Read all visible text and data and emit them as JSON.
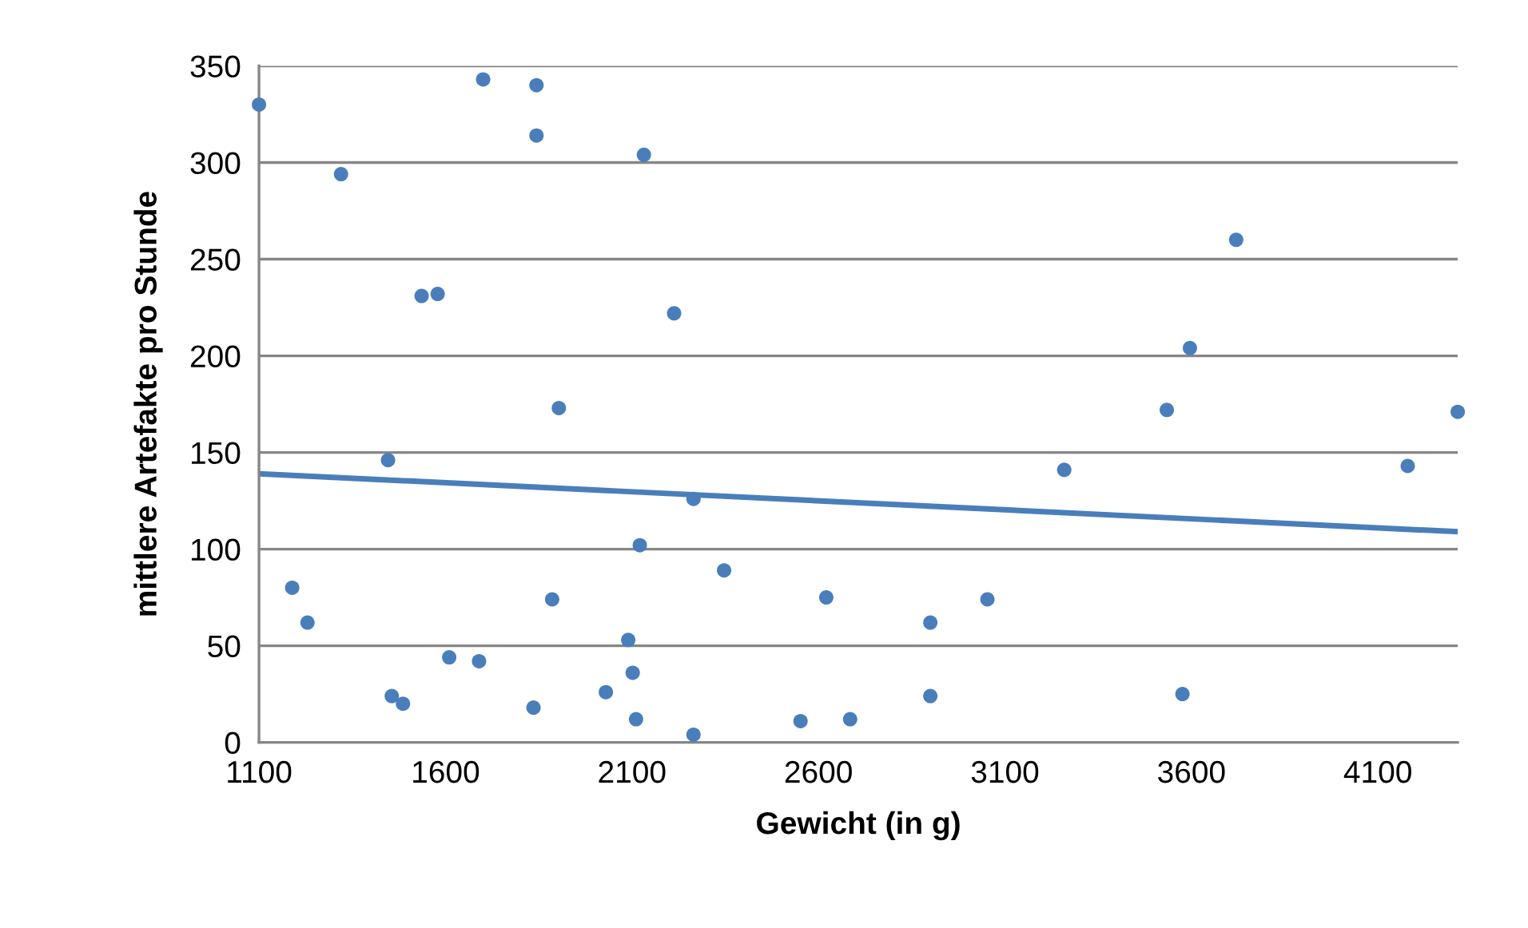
{
  "chart_data": {
    "type": "scatter",
    "xlabel": "Gewicht (in g)",
    "ylabel": "mittlere Artefakte pro Stunde",
    "xlim": [
      1100,
      4314
    ],
    "xticks": [
      1100,
      1600,
      2100,
      2600,
      3100,
      3600,
      4100
    ],
    "ylim": [
      0,
      350
    ],
    "yticks": [
      0,
      50,
      100,
      150,
      200,
      250,
      300,
      350
    ],
    "grid": "y",
    "series": [
      {
        "color": "#4a7ebb",
        "marker": "circle",
        "x": [
          1100,
          1320,
          1189,
          1230,
          1446,
          1456,
          1486,
          1536,
          1579,
          1610,
          1690,
          1701,
          1844,
          1844,
          1836,
          1886,
          1904,
          2030,
          2090,
          2102,
          2111,
          2121,
          2132,
          2213,
          2265,
          2265,
          2347,
          2552,
          2621,
          2685,
          2900,
          2900,
          3053,
          3259,
          3534,
          3596,
          3576,
          3720,
          4180,
          4314
        ],
        "values": [
          330,
          294,
          80,
          62,
          146,
          24,
          20,
          231,
          232,
          44,
          42,
          343,
          340,
          314,
          18,
          74,
          173,
          26,
          53,
          36,
          12,
          102,
          304,
          222,
          126,
          4,
          89,
          11,
          75,
          12,
          62,
          24,
          74,
          141,
          172,
          204,
          25,
          260,
          143,
          171
        ]
      },
      {
        "type": "line",
        "color": "#4a7ebb",
        "marker": "none",
        "x": [
          1100,
          4314
        ],
        "values": [
          139,
          109
        ]
      }
    ]
  }
}
